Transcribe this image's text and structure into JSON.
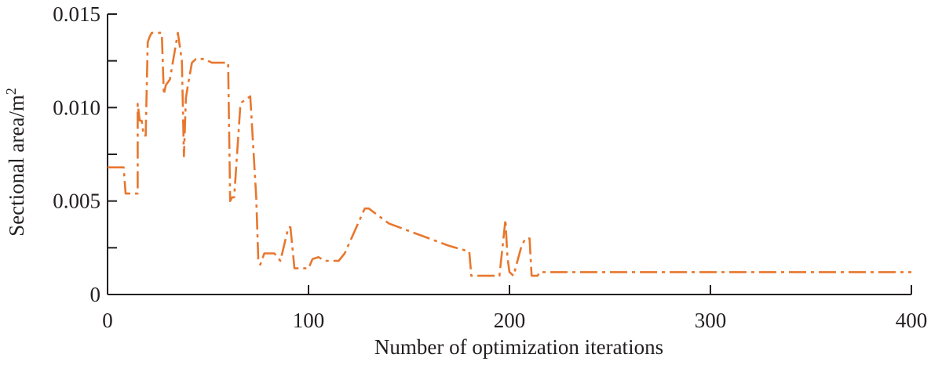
{
  "chart_data": {
    "type": "line",
    "title": "",
    "xlabel": "Number of optimization iterations",
    "ylabel_main": "Sectional area/m",
    "ylabel_sup": "2",
    "xlim": [
      0,
      400
    ],
    "ylim": [
      0,
      0.015
    ],
    "xticks": [
      0,
      100,
      200,
      300,
      400
    ],
    "xtick_labels": [
      "0",
      "100",
      "200",
      "300",
      "400"
    ],
    "yticks": [
      0,
      0.0025,
      0.005,
      0.0075,
      0.01,
      0.0125,
      0.015
    ],
    "ytick_labels": [
      "0",
      "",
      "0.005",
      "",
      "0.010",
      "",
      "0.015"
    ],
    "grid": false,
    "series": [
      {
        "color": "#e8772e",
        "x": [
          0,
          8,
          9,
          15,
          15,
          16,
          17,
          18,
          19,
          20,
          21,
          22,
          24,
          27,
          28,
          29,
          31,
          35,
          37,
          38,
          39,
          40,
          42,
          44,
          48,
          52,
          56,
          60,
          61,
          62,
          63,
          66,
          67,
          71,
          74,
          75,
          76,
          78,
          80,
          83,
          86,
          90,
          91,
          93,
          94,
          95,
          96,
          100,
          102,
          105,
          108,
          115,
          118,
          128,
          130,
          140,
          150,
          160,
          170,
          180,
          181,
          190,
          195,
          198,
          199,
          200,
          201,
          202,
          203,
          204,
          205,
          206,
          208,
          210,
          211,
          212,
          214,
          215,
          220,
          300,
          400
        ],
        "y": [
          0.0068,
          0.0068,
          0.0054,
          0.0054,
          0.0102,
          0.0093,
          0.0093,
          0.0085,
          0.0085,
          0.0135,
          0.0138,
          0.014,
          0.014,
          0.014,
          0.0107,
          0.0112,
          0.0115,
          0.014,
          0.0125,
          0.0074,
          0.0105,
          0.0112,
          0.0124,
          0.0126,
          0.0126,
          0.0124,
          0.0124,
          0.0124,
          0.005,
          0.0052,
          0.0052,
          0.01,
          0.0103,
          0.0106,
          0.0052,
          0.0019,
          0.0016,
          0.0022,
          0.0022,
          0.0022,
          0.0018,
          0.0036,
          0.0036,
          0.0014,
          0.0014,
          0.0014,
          0.0014,
          0.0014,
          0.0019,
          0.002,
          0.0018,
          0.0018,
          0.0022,
          0.0046,
          0.0046,
          0.0038,
          0.0034,
          0.003,
          0.0026,
          0.0023,
          0.001,
          0.001,
          0.001,
          0.004,
          0.002,
          0.0012,
          0.0011,
          0.001,
          0.0014,
          0.0018,
          0.0022,
          0.0026,
          0.003,
          0.003,
          0.001,
          0.001,
          0.001,
          0.0012,
          0.0012,
          0.0012,
          0.0012
        ]
      }
    ]
  }
}
